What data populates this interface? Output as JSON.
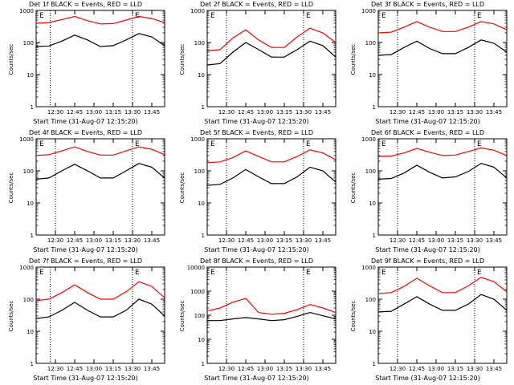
{
  "figure": {
    "xlabel": "Start Time (31-Aug-07 12:15:20)",
    "ylabel": "Counts/sec",
    "x_tick_labels": [
      "12:30",
      "12:45",
      "13:00",
      "13:15",
      "13:30",
      "13:45"
    ],
    "y_tick_labels": [
      "1",
      "10",
      "100",
      "1000"
    ],
    "marker_labels": [
      "E",
      "E"
    ],
    "series_colors": {
      "events": "#000000",
      "lld": "#ff0000"
    }
  },
  "chart_data": [
    {
      "type": "line",
      "title": "Det 1f BLACK = Events, RED = LLD",
      "xlabel": "Start Time (31-Aug-07 12:15:20)",
      "ylabel": "Counts/sec",
      "ylim": [
        1,
        1000
      ],
      "y_scale": "log",
      "x": [
        "12:15",
        "12:25",
        "12:35",
        "12:45",
        "12:55",
        "13:05",
        "13:15",
        "13:25",
        "13:35",
        "13:45",
        "13:55"
      ],
      "series": [
        {
          "name": "Events",
          "color": "#000000",
          "values": [
            75,
            78,
            110,
            170,
            120,
            75,
            80,
            120,
            190,
            150,
            80
          ]
        },
        {
          "name": "LLD",
          "color": "#ff0000",
          "values": [
            400,
            420,
            520,
            650,
            480,
            380,
            390,
            500,
            650,
            560,
            420
          ]
        }
      ],
      "vlines": [
        "12:26",
        "13:30"
      ]
    },
    {
      "type": "line",
      "title": "Det 2f BLACK = Events, RED = LLD",
      "xlabel": "Start Time (31-Aug-07 12:15:20)",
      "ylabel": "Counts/sec",
      "ylim": [
        1,
        1000
      ],
      "y_scale": "log",
      "x": [
        "12:15",
        "12:25",
        "12:35",
        "12:45",
        "12:55",
        "13:05",
        "13:15",
        "13:25",
        "13:35",
        "13:45",
        "13:55"
      ],
      "series": [
        {
          "name": "Events",
          "color": "#000000",
          "values": [
            20,
            22,
            50,
            100,
            60,
            35,
            35,
            60,
            110,
            80,
            35
          ]
        },
        {
          "name": "LLD",
          "color": "#ff0000",
          "values": [
            55,
            60,
            140,
            250,
            120,
            70,
            70,
            150,
            280,
            200,
            100
          ]
        }
      ],
      "vlines": [
        "12:30",
        "13:30"
      ]
    },
    {
      "type": "line",
      "title": "Det 3f BLACK = Events, RED = LLD",
      "xlabel": "Start Time (31-Aug-07 12:15:20)",
      "ylabel": "Counts/sec",
      "ylim": [
        1,
        1000
      ],
      "y_scale": "log",
      "x": [
        "12:15",
        "12:25",
        "12:35",
        "12:45",
        "12:55",
        "13:05",
        "13:15",
        "13:25",
        "13:35",
        "13:45",
        "13:55"
      ],
      "series": [
        {
          "name": "Events",
          "color": "#000000",
          "values": [
            40,
            42,
            70,
            110,
            65,
            45,
            45,
            70,
            120,
            95,
            50
          ]
        },
        {
          "name": "LLD",
          "color": "#ff0000",
          "values": [
            200,
            210,
            300,
            450,
            300,
            220,
            220,
            300,
            450,
            380,
            250
          ]
        }
      ],
      "vlines": [
        "12:30",
        "13:30"
      ]
    },
    {
      "type": "line",
      "title": "Det 4f BLACK = Events, RED = LLD",
      "xlabel": "Start Time (31-Aug-07 12:15:20)",
      "ylabel": "Counts/sec",
      "ylim": [
        1,
        1000
      ],
      "y_scale": "log",
      "x": [
        "12:15",
        "12:25",
        "12:35",
        "12:45",
        "12:55",
        "13:05",
        "13:15",
        "13:25",
        "13:35",
        "13:45",
        "13:55"
      ],
      "series": [
        {
          "name": "Events",
          "color": "#000000",
          "values": [
            55,
            60,
            100,
            160,
            100,
            60,
            60,
            100,
            170,
            130,
            60
          ]
        },
        {
          "name": "LLD",
          "color": "#ff0000",
          "values": [
            300,
            320,
            420,
            560,
            400,
            310,
            310,
            420,
            560,
            470,
            320
          ]
        }
      ],
      "vlines": [
        "12:30",
        "13:30"
      ]
    },
    {
      "type": "line",
      "title": "Det 5f BLACK = Events, RED = LLD",
      "xlabel": "Start Time (31-Aug-07 12:15:20)",
      "ylabel": "Counts/sec",
      "ylim": [
        1,
        1000
      ],
      "y_scale": "log",
      "x": [
        "12:15",
        "12:25",
        "12:35",
        "12:45",
        "12:55",
        "13:05",
        "13:15",
        "13:25",
        "13:35",
        "13:45",
        "13:55"
      ],
      "series": [
        {
          "name": "Events",
          "color": "#000000",
          "values": [
            35,
            38,
            60,
            110,
            65,
            40,
            40,
            65,
            130,
            100,
            45
          ]
        },
        {
          "name": "LLD",
          "color": "#ff0000",
          "values": [
            180,
            190,
            260,
            420,
            280,
            190,
            190,
            280,
            450,
            360,
            220
          ]
        }
      ],
      "vlines": [
        "12:30",
        "13:30"
      ]
    },
    {
      "type": "line",
      "title": "Det 6f BLACK = Events, RED = LLD",
      "xlabel": "Start Time (31-Aug-07 12:15:20)",
      "ylabel": "Counts/sec",
      "ylim": [
        1,
        1000
      ],
      "y_scale": "log",
      "x": [
        "12:15",
        "12:25",
        "12:35",
        "12:45",
        "12:55",
        "13:05",
        "13:15",
        "13:25",
        "13:35",
        "13:45",
        "13:55"
      ],
      "series": [
        {
          "name": "Events",
          "color": "#000000",
          "values": [
            55,
            58,
            85,
            150,
            90,
            60,
            65,
            95,
            170,
            130,
            60
          ]
        },
        {
          "name": "LLD",
          "color": "#ff0000",
          "values": [
            280,
            290,
            360,
            500,
            380,
            300,
            310,
            400,
            520,
            440,
            300
          ]
        }
      ],
      "vlines": [
        "12:30",
        "13:30"
      ]
    },
    {
      "type": "line",
      "title": "Det 7f BLACK = Events, RED = LLD",
      "xlabel": "Start Time (31-Aug-07 12:15:20)",
      "ylabel": "Counts/sec",
      "ylim": [
        1,
        1000
      ],
      "y_scale": "log",
      "x": [
        "12:15",
        "12:25",
        "12:35",
        "12:45",
        "12:55",
        "13:05",
        "13:15",
        "13:25",
        "13:35",
        "13:45",
        "13:55"
      ],
      "series": [
        {
          "name": "Events",
          "color": "#000000",
          "values": [
            25,
            28,
            45,
            80,
            45,
            28,
            28,
            45,
            100,
            70,
            30
          ]
        },
        {
          "name": "LLD",
          "color": "#ff0000",
          "values": [
            90,
            100,
            160,
            280,
            160,
            100,
            100,
            170,
            350,
            250,
            110
          ]
        }
      ],
      "vlines": [
        "12:26",
        "13:30"
      ]
    },
    {
      "type": "line",
      "title": "Det 8f BLACK = Events, RED = LLD",
      "xlabel": "Start Time (31-Aug-07 12:15:20)",
      "ylabel": "Counts/sec",
      "ylim": [
        1,
        10000
      ],
      "y_scale": "log",
      "y_tick_labels": [
        "1",
        "10",
        "100",
        "1000",
        "10000"
      ],
      "x": [
        "12:15",
        "12:25",
        "12:35",
        "12:45",
        "12:55",
        "13:05",
        "13:15",
        "13:25",
        "13:35",
        "13:45",
        "13:55"
      ],
      "series": [
        {
          "name": "Events",
          "color": "#000000",
          "values": [
            60,
            60,
            70,
            80,
            70,
            60,
            65,
            90,
            130,
            95,
            70
          ]
        },
        {
          "name": "LLD",
          "color": "#ff0000",
          "values": [
            150,
            200,
            350,
            500,
            130,
            110,
            120,
            170,
            280,
            200,
            130
          ]
        }
      ],
      "vlines": [
        "12:30",
        "13:30"
      ]
    },
    {
      "type": "line",
      "title": "Det 9f BLACK = Events, RED = LLD",
      "xlabel": "Start Time (31-Aug-07 12:15:20)",
      "ylabel": "Counts/sec",
      "ylim": [
        1,
        1000
      ],
      "y_scale": "log",
      "x": [
        "12:15",
        "12:25",
        "12:35",
        "12:45",
        "12:55",
        "13:05",
        "13:15",
        "13:25",
        "13:35",
        "13:45",
        "13:55"
      ],
      "series": [
        {
          "name": "Events",
          "color": "#000000",
          "values": [
            40,
            42,
            70,
            120,
            70,
            45,
            45,
            70,
            140,
            100,
            45
          ]
        },
        {
          "name": "LLD",
          "color": "#ff0000",
          "values": [
            150,
            160,
            250,
            450,
            260,
            160,
            160,
            260,
            480,
            350,
            170
          ]
        }
      ],
      "vlines": [
        "12:30",
        "13:30"
      ]
    }
  ]
}
